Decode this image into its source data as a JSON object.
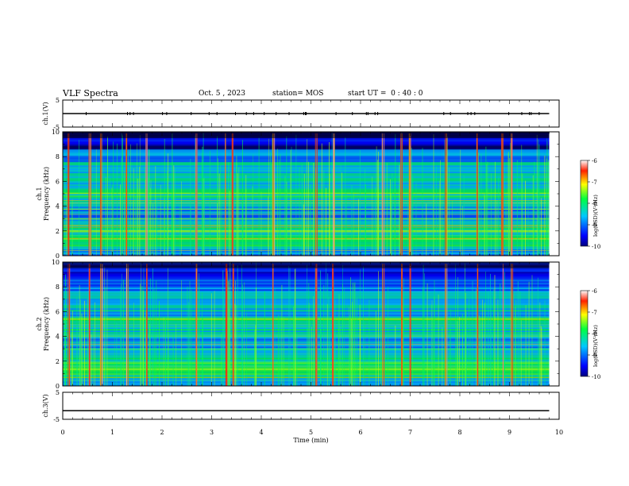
{
  "header": {
    "title": "VLF Spectra",
    "date": "Oct. 5 , 2023",
    "station": "station= MOS",
    "start": "start UT =  0 : 40 : 0"
  },
  "chart_data": [
    {
      "type": "line",
      "panel": "ch1-voltage",
      "ylabel": "ch.1(V)",
      "ylim": [
        -5,
        5
      ],
      "yticks": [
        "5",
        "-5"
      ],
      "xlim": [
        0,
        10
      ],
      "series": [
        {
          "x": [
            0,
            9.8
          ],
          "y": [
            0,
            0
          ]
        }
      ]
    },
    {
      "type": "heatmap",
      "panel": "ch1-spectrogram",
      "ylabel": "ch.1\nFrequency (kHz)",
      "ylim": [
        0,
        10
      ],
      "yticks": [
        "0",
        "2",
        "4",
        "6",
        "8",
        "10"
      ],
      "xlim": [
        0,
        10
      ],
      "data_xmax": 9.8,
      "colorbar": {
        "label": "log(PSD)(V²/Hz)",
        "range": [
          -10,
          -6
        ],
        "ticks": [
          "-6",
          "-7",
          "-8",
          "-9",
          "-10"
        ]
      },
      "sferic_times_min": [
        0.12,
        0.55,
        0.78,
        1.3,
        1.68,
        2.7,
        3.3,
        3.42,
        4.25,
        5.1,
        5.45,
        6.45,
        6.82,
        7.0,
        7.72,
        8.35,
        8.85,
        9.05
      ]
    },
    {
      "type": "heatmap",
      "panel": "ch2-spectrogram",
      "ylabel": "ch.2\nFrequency (kHz)",
      "ylim": [
        0,
        10
      ],
      "yticks": [
        "0",
        "2",
        "4",
        "6",
        "8",
        "10"
      ],
      "xlim": [
        0,
        10
      ],
      "data_xmax": 9.8,
      "colorbar": {
        "label": "log(PSD)(V²/Hz)",
        "range": [
          -10,
          -6
        ],
        "ticks": [
          "-6",
          "-7",
          "-8",
          "-9",
          "-10"
        ]
      },
      "sferic_times_min": [
        0.12,
        0.55,
        0.78,
        1.3,
        1.68,
        2.7,
        3.3,
        3.42,
        4.25,
        5.1,
        5.45,
        6.45,
        6.82,
        7.0,
        7.72,
        8.35,
        8.85,
        9.05
      ]
    },
    {
      "type": "line",
      "panel": "ch3-voltage",
      "ylabel": "ch.3(V)",
      "ylim": [
        -5,
        5
      ],
      "yticks": [
        "5",
        "-5"
      ],
      "xlim": [
        0,
        10
      ],
      "xlabel": "Time (min)",
      "xticks": [
        "0",
        "1",
        "2",
        "3",
        "4",
        "5",
        "6",
        "7",
        "8",
        "9",
        "10"
      ],
      "series": [
        {
          "x": [
            0,
            9.8
          ],
          "y": [
            -1.8,
            -1.8
          ]
        }
      ]
    }
  ]
}
